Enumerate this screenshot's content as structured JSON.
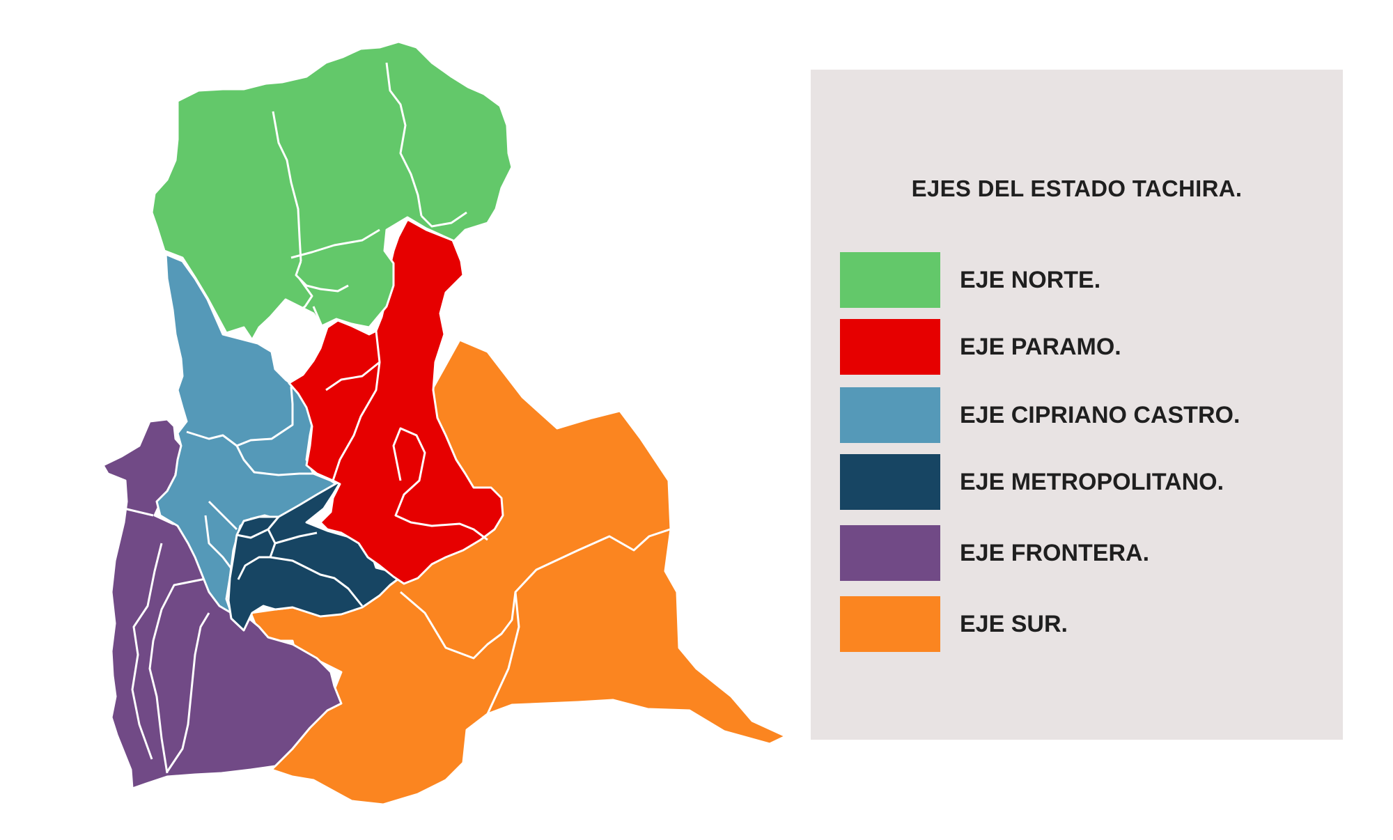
{
  "legend": {
    "title": "EJES DEL ESTADO TACHIRA.",
    "items": [
      {
        "key": "norte",
        "label": "EJE NORTE.",
        "color": "#63c86a"
      },
      {
        "key": "paramo",
        "label": "EJE PARAMO.",
        "color": "#e60000"
      },
      {
        "key": "cipriano",
        "label": "EJE CIPRIANO CASTRO.",
        "color": "#5599b8"
      },
      {
        "key": "metropolitano",
        "label": "EJE METROPOLITANO.",
        "color": "#174563"
      },
      {
        "key": "frontera",
        "label": "EJE FRONTERA.",
        "color": "#714a86"
      },
      {
        "key": "sur",
        "label": "EJE SUR.",
        "color": "#fb8520"
      }
    ]
  }
}
